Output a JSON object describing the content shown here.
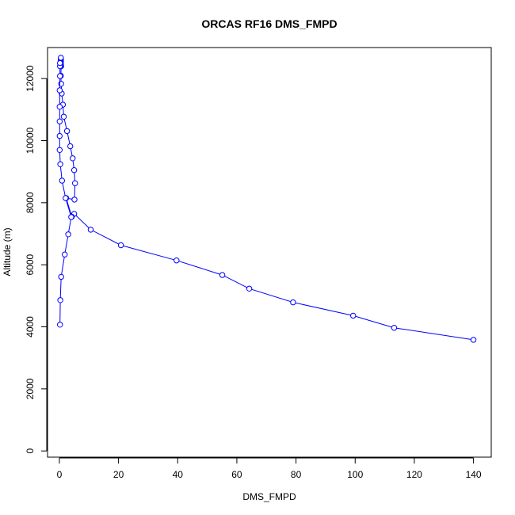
{
  "chart_data": {
    "type": "line",
    "title": "ORCAS RF16 DMS_FMPD",
    "xlabel": "DMS_FMPD",
    "ylabel": "Altitude (m)",
    "xlim": [
      -4,
      146
    ],
    "ylim": [
      -200,
      13000
    ],
    "xticks": [
      "0",
      "20",
      "40",
      "60",
      "80",
      "100",
      "120",
      "140"
    ],
    "xtick_values": [
      0,
      20,
      40,
      60,
      80,
      100,
      120,
      140
    ],
    "yticks": [
      "0",
      "2000",
      "4000",
      "6000",
      "8000",
      "10000",
      "12000"
    ],
    "ytick_values": [
      0,
      2000,
      4000,
      6000,
      8000,
      10000,
      12000
    ],
    "grid": false,
    "marker": "open-circle",
    "color": "#0000ff",
    "series": [
      {
        "x": [
          140.0,
          113.2,
          99.3,
          79.0,
          64.2,
          55.1,
          39.6,
          20.8,
          10.6,
          5.0,
          4.2,
          2.3,
          5.1,
          5.3,
          5.0,
          4.5,
          3.7,
          2.6,
          1.5,
          1.2,
          0.8,
          0.6,
          0.5,
          0.6,
          0.5,
          0.5,
          0.5,
          0.5,
          0.5,
          0.5,
          0.5,
          0.5,
          0.5,
          0.5,
          0.5,
          0.5
        ],
        "y": [
          3580,
          3970,
          4360,
          4790,
          5230,
          5670,
          6140,
          6630,
          7130,
          7640,
          7550,
          8150,
          8100,
          8630,
          9050,
          9430,
          9820,
          10310,
          10770,
          11160,
          11520,
          11830,
          12090,
          12400,
          12430,
          12460,
          12490,
          12520,
          12550,
          12580,
          12610,
          12640,
          12670,
          12420,
          12450,
          12500
        ]
      },
      {
        "x": [
          0.2,
          0.3,
          0.6,
          1.8,
          3.0,
          4.0,
          2.1,
          0.9,
          0.3,
          0.1,
          0.1,
          0.1,
          0.1,
          0.1,
          0.2,
          0.2,
          0.2
        ],
        "y": [
          4070,
          4860,
          5610,
          6330,
          6980,
          7540,
          8150,
          8710,
          9240,
          9700,
          10150,
          10620,
          11090,
          11620,
          12080,
          12400,
          12500
        ]
      }
    ]
  }
}
